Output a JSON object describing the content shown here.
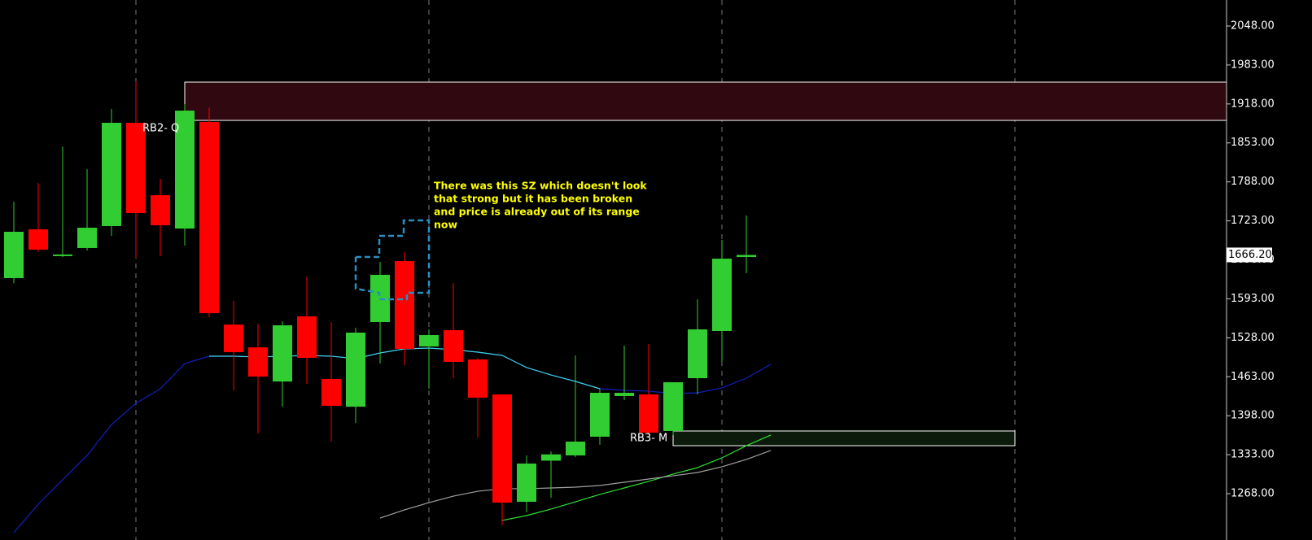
{
  "chart_data": {
    "type": "candlestick",
    "up_color": "#32cd32",
    "down_color": "#ff0000",
    "ylim": [
      1215.1,
      2091.4
    ],
    "yticks": [
      {
        "value": 1268,
        "label": "1268.00"
      },
      {
        "value": 1333,
        "label": "1333.00"
      },
      {
        "value": 1398,
        "label": "1398.00"
      },
      {
        "value": 1463,
        "label": "1463.00"
      },
      {
        "value": 1528,
        "label": "1528.00"
      },
      {
        "value": 1593,
        "label": "1593.00"
      },
      {
        "value": 1658,
        "label": "1658.00"
      },
      {
        "value": 1723,
        "label": "1723.00"
      },
      {
        "value": 1788,
        "label": "1788.00"
      },
      {
        "value": 1853,
        "label": "1853.00"
      },
      {
        "value": 1918,
        "label": "1918.00"
      },
      {
        "value": 1983,
        "label": "1983.00"
      },
      {
        "value": 2048,
        "label": "2048.00"
      }
    ],
    "xgrid_indices": [
      5,
      17,
      29,
      41
    ],
    "open": [
      1627.5,
      1708.9,
      1665.5,
      1677.7,
      1714.3,
      1886.6,
      1765.8,
      1710.2,
      1888.0,
      1550.0,
      1512.0,
      1455.0,
      1563.7,
      1459.3,
      1413.0,
      1554.2,
      1655.9,
      1513.5,
      1540.7,
      1491.8,
      1433.5,
      1254.4,
      1323.0,
      1331.8,
      1363.0,
      1430.8,
      1433.5,
      1372.5,
      1460.6,
      1539.3,
      1662.7
    ],
    "high": [
      1755.0,
      1786.0,
      1847.0,
      1809.0,
      1909.6,
      1955.8,
      1793.0,
      1917.8,
      1912.0,
      1589.5,
      1551.5,
      1555.6,
      1630.0,
      1554.0,
      1544.7,
      1654.6,
      1671.0,
      1542.0,
      1619.3,
      1494.5,
      1433.5,
      1331.8,
      1338.5,
      1498.6,
      1443.0,
      1515.0,
      1517.6,
      1453.8,
      1592.2,
      1691.3,
      1732.0
    ],
    "low": [
      1619.0,
      1671.0,
      1662.7,
      1673.6,
      1698.0,
      1661.4,
      1664.0,
      1681.7,
      1562.4,
      1440.0,
      1368.4,
      1413.0,
      1451.0,
      1354.8,
      1386.0,
      1485.0,
      1482.0,
      1443.0,
      1460.6,
      1361.6,
      1215.0,
      1237.0,
      1261.0,
      1329.0,
      1349.4,
      1424.0,
      1365.7,
      1365.7,
      1433.5,
      1487.8,
      1635.6
    ],
    "close": [
      1704.8,
      1675.0,
      1666.9,
      1711.6,
      1886.6,
      1736.0,
      1715.7,
      1906.9,
      1569.0,
      1504.0,
      1463.3,
      1548.8,
      1494.5,
      1414.5,
      1536.6,
      1633.0,
      1509.5,
      1532.5,
      1487.8,
      1428.0,
      1253.0,
      1318.2,
      1333.5,
      1354.8,
      1436.2,
      1436.2,
      1369.7,
      1453.8,
      1542.0,
      1660.0,
      1666.2
    ],
    "lines": [
      {
        "color": "#1020c0",
        "values": [
          1203.0,
          1250.4,
          1291.1,
          1331.8,
          1383.3,
          1418.6,
          1443.0,
          1485.0,
          1497.3,
          1497.3,
          1496.0,
          1497.3,
          1498.6,
          1497.3,
          1493.2,
          1502.7,
          1509.5,
          1510.8,
          1508.1,
          1504.0,
          1498.6,
          1478.3,
          1466.0,
          1455.2,
          1443.0,
          1440.3,
          1439.0,
          1434.9,
          1436.2,
          1444.4,
          1460.6,
          1483.7
        ]
      },
      {
        "color": "#40d0e0",
        "values": [
          null,
          null,
          null,
          null,
          null,
          null,
          null,
          null,
          1497.3,
          1497.3,
          1496.0,
          1497.3,
          1498.6,
          1497.3,
          1493.2,
          1502.7,
          1509.5,
          1510.8,
          1508.1,
          1504.0,
          1498.6,
          1478.3,
          1466.0,
          1455.2,
          1443.0,
          null,
          null,
          null,
          null,
          null,
          null,
          null
        ]
      },
      {
        "color": "#30e030",
        "values": [
          null,
          null,
          null,
          null,
          null,
          null,
          null,
          null,
          null,
          null,
          null,
          null,
          null,
          null,
          null,
          null,
          null,
          null,
          null,
          null,
          1223.3,
          1231.4,
          1242.3,
          1254.4,
          1266.7,
          1277.5,
          1288.4,
          1300.6,
          1311.4,
          1327.7,
          1348.0,
          1365.7
        ]
      },
      {
        "color": "#a0a0a0",
        "values": [
          null,
          null,
          null,
          null,
          null,
          null,
          null,
          null,
          null,
          null,
          null,
          null,
          null,
          null,
          null,
          1227.3,
          1240.9,
          1253.0,
          1263.9,
          1272.0,
          1276.2,
          1276.2,
          1277.5,
          1278.9,
          1281.6,
          1287.0,
          1292.4,
          1297.8,
          1303.3,
          1312.8,
          1325.0,
          1339.9
        ]
      }
    ],
    "zones": [
      {
        "label": "RB2- Q",
        "top": 1954.4,
        "bottom": 1890.6,
        "fill": "#300810"
      },
      {
        "label": "RB3- M",
        "top": 1372.5,
        "bottom": 1348.0,
        "fill": "#0c1a0c"
      }
    ],
    "last_price": {
      "value": 1666.2,
      "label": "1666.20"
    },
    "annotation": [
      "There was this SZ which doesn't look",
      "that strong but it has been broken",
      "and price is already out of its range",
      "now"
    ]
  }
}
